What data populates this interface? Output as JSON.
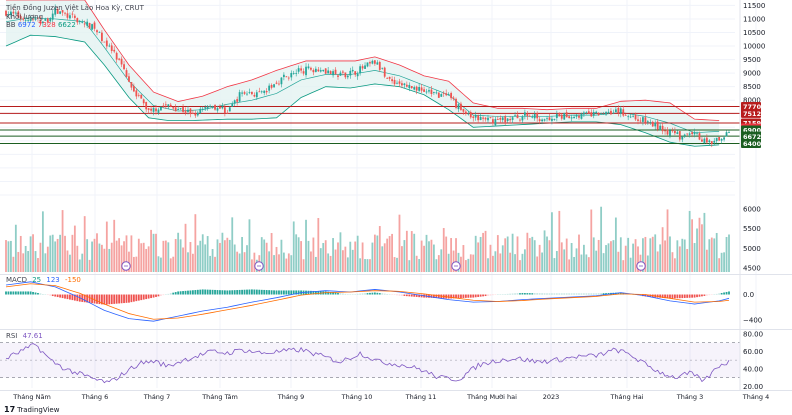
{
  "legend": {
    "title": "Tiền Đồng Juzen Việt Lào Hoa Kỳ, CRUT",
    "volume_label": "Khối lượng",
    "bb_prefix": "BB",
    "bb_values": [
      "6972",
      "7328",
      "6622"
    ],
    "bb_colors": [
      "#2962ff",
      "#f23645",
      "#089981"
    ]
  },
  "indicators": {
    "macd": {
      "label": "MACD",
      "values": [
        "25",
        "123",
        "-150"
      ],
      "colors": [
        "#089981",
        "#2962ff",
        "#ff6d00"
      ]
    },
    "rsi": {
      "label": "RSI",
      "value": "47.61",
      "color": "#7e57c2"
    }
  },
  "branding": {
    "icon": "tradingview-logo-icon",
    "text": "TradingView"
  },
  "colors": {
    "up": "#26a69a",
    "down": "#ef5350",
    "vol_up": "#8fcdc6",
    "vol_down": "#f5a3a1",
    "bb_mid": "#2962ff",
    "bb_upper": "#f23645",
    "bb_lower": "#089981",
    "bb_fill": "#e3f2f1",
    "hline_red": "#b71c1c",
    "hline_green": "#1b5e20"
  },
  "chart_data": {
    "type": "candlestick",
    "price_axis": {
      "ticks": [
        4500,
        5000,
        5500,
        6000,
        6500,
        7000,
        7500,
        8000,
        8500,
        9000,
        9500,
        10000,
        10500,
        11000,
        11500
      ],
      "range": [
        4500,
        11700
      ]
    },
    "volume_axis": {
      "ticks": [
        4500,
        5000,
        5500,
        6000
      ],
      "range": [
        4400,
        6100
      ]
    },
    "x_labels": [
      "Tháng Năm",
      "Tháng 6",
      "Tháng 7",
      "Tháng Tám",
      "Tháng 9",
      "Tháng 10",
      "Tháng 11",
      "Tháng Mười hai",
      "2023",
      "Tháng Hai",
      "Tháng 3",
      "Tháng 4"
    ],
    "horizontal_levels": [
      {
        "value": 7770,
        "label": "7770",
        "color": "#b71c1c"
      },
      {
        "value": 7512,
        "label": "7512",
        "color": "#b71c1c"
      },
      {
        "value": 7159,
        "label": "7159",
        "color": "#b71c1c"
      },
      {
        "value": 6972,
        "label": "6972",
        "color": "#f23645"
      },
      {
        "value": 6900,
        "label": "6900",
        "color": "#1b5e20"
      },
      {
        "value": 6672,
        "label": "6672",
        "color": "#1b5e20"
      },
      {
        "value": 6400,
        "label": "6400",
        "color": "#1b5e20"
      }
    ],
    "price_path": [
      [
        0,
        11250
      ],
      [
        8,
        11000
      ],
      [
        16,
        10900
      ],
      [
        20,
        11300
      ],
      [
        28,
        11000
      ],
      [
        36,
        10650
      ],
      [
        44,
        9700
      ],
      [
        52,
        8400
      ],
      [
        58,
        7600
      ],
      [
        64,
        7800
      ],
      [
        70,
        7700
      ],
      [
        76,
        7500
      ],
      [
        82,
        7850
      ],
      [
        90,
        7600
      ],
      [
        96,
        8300
      ],
      [
        104,
        8200
      ],
      [
        112,
        8800
      ],
      [
        120,
        9100
      ],
      [
        128,
        9200
      ],
      [
        134,
        8900
      ],
      [
        142,
        9050
      ],
      [
        150,
        9400
      ],
      [
        156,
        8750
      ],
      [
        164,
        8500
      ],
      [
        172,
        8300
      ],
      [
        180,
        8100
      ],
      [
        188,
        7400
      ],
      [
        196,
        7250
      ],
      [
        204,
        7300
      ],
      [
        212,
        7450
      ],
      [
        220,
        7300
      ],
      [
        226,
        7400
      ],
      [
        232,
        7450
      ],
      [
        240,
        7480
      ],
      [
        248,
        7650
      ],
      [
        256,
        7350
      ],
      [
        262,
        7150
      ],
      [
        270,
        6800
      ],
      [
        276,
        6600
      ],
      [
        280,
        6750
      ],
      [
        286,
        6400
      ],
      [
        290,
        6520
      ],
      [
        294,
        6850
      ]
    ],
    "bb_upper": [
      [
        0,
        11700
      ],
      [
        20,
        11700
      ],
      [
        32,
        11700
      ],
      [
        40,
        10600
      ],
      [
        50,
        9300
      ],
      [
        60,
        8300
      ],
      [
        70,
        7950
      ],
      [
        80,
        8150
      ],
      [
        90,
        8500
      ],
      [
        100,
        8750
      ],
      [
        110,
        9100
      ],
      [
        122,
        9450
      ],
      [
        132,
        9450
      ],
      [
        142,
        9450
      ],
      [
        150,
        9600
      ],
      [
        160,
        9300
      ],
      [
        170,
        8900
      ],
      [
        180,
        8700
      ],
      [
        190,
        7900
      ],
      [
        200,
        7700
      ],
      [
        210,
        7700
      ],
      [
        220,
        7650
      ],
      [
        230,
        7700
      ],
      [
        240,
        7700
      ],
      [
        250,
        7960
      ],
      [
        260,
        8000
      ],
      [
        270,
        7900
      ],
      [
        280,
        7300
      ],
      [
        290,
        7250
      ]
    ],
    "bb_lower": [
      [
        0,
        10000
      ],
      [
        10,
        10400
      ],
      [
        20,
        10350
      ],
      [
        32,
        10150
      ],
      [
        40,
        9300
      ],
      [
        50,
        8100
      ],
      [
        58,
        7350
      ],
      [
        66,
        7250
      ],
      [
        76,
        7250
      ],
      [
        90,
        7300
      ],
      [
        100,
        7300
      ],
      [
        110,
        7350
      ],
      [
        120,
        8100
      ],
      [
        130,
        8500
      ],
      [
        140,
        8450
      ],
      [
        150,
        8600
      ],
      [
        160,
        8500
      ],
      [
        170,
        8200
      ],
      [
        180,
        7650
      ],
      [
        190,
        7000
      ],
      [
        200,
        7050
      ],
      [
        210,
        7100
      ],
      [
        220,
        7150
      ],
      [
        230,
        7200
      ],
      [
        240,
        7200
      ],
      [
        250,
        7100
      ],
      [
        260,
        6800
      ],
      [
        270,
        6450
      ],
      [
        280,
        6300
      ],
      [
        290,
        6350
      ]
    ],
    "bb_mid": [
      [
        0,
        10900
      ],
      [
        10,
        11050
      ],
      [
        20,
        11000
      ],
      [
        32,
        10900
      ],
      [
        40,
        9950
      ],
      [
        50,
        8700
      ],
      [
        60,
        7800
      ],
      [
        70,
        7600
      ],
      [
        80,
        7650
      ],
      [
        90,
        7850
      ],
      [
        100,
        8000
      ],
      [
        110,
        8250
      ],
      [
        120,
        8750
      ],
      [
        130,
        8950
      ],
      [
        140,
        8950
      ],
      [
        150,
        9100
      ],
      [
        160,
        8900
      ],
      [
        170,
        8550
      ],
      [
        180,
        8200
      ],
      [
        190,
        7450
      ],
      [
        200,
        7400
      ],
      [
        210,
        7400
      ],
      [
        220,
        7400
      ],
      [
        230,
        7450
      ],
      [
        240,
        7450
      ],
      [
        250,
        7550
      ],
      [
        260,
        7400
      ],
      [
        270,
        7150
      ],
      [
        280,
        6800
      ],
      [
        290,
        6850
      ]
    ],
    "rsi_axis": {
      "ticks": [
        20,
        40,
        60,
        80
      ],
      "range": [
        18,
        80
      ],
      "band": [
        30,
        70
      ]
    },
    "rsi_path": [
      [
        0,
        52
      ],
      [
        6,
        60
      ],
      [
        12,
        68
      ],
      [
        18,
        50
      ],
      [
        24,
        40
      ],
      [
        30,
        34
      ],
      [
        36,
        28
      ],
      [
        42,
        24
      ],
      [
        48,
        35
      ],
      [
        54,
        46
      ],
      [
        60,
        49
      ],
      [
        66,
        43
      ],
      [
        72,
        50
      ],
      [
        78,
        55
      ],
      [
        84,
        60
      ],
      [
        90,
        58
      ],
      [
        96,
        62
      ],
      [
        104,
        58
      ],
      [
        112,
        60
      ],
      [
        120,
        62
      ],
      [
        128,
        55
      ],
      [
        136,
        48
      ],
      [
        144,
        58
      ],
      [
        152,
        48
      ],
      [
        160,
        45
      ],
      [
        168,
        40
      ],
      [
        176,
        30
      ],
      [
        184,
        28
      ],
      [
        192,
        44
      ],
      [
        200,
        50
      ],
      [
        208,
        52
      ],
      [
        216,
        48
      ],
      [
        224,
        50
      ],
      [
        232,
        54
      ],
      [
        240,
        55
      ],
      [
        248,
        62
      ],
      [
        254,
        56
      ],
      [
        260,
        45
      ],
      [
        266,
        36
      ],
      [
        272,
        30
      ],
      [
        278,
        35
      ],
      [
        284,
        26
      ],
      [
        290,
        44
      ],
      [
        294,
        48
      ]
    ],
    "macd_axis": {
      "ticks": [
        0,
        -400
      ],
      "labels": [
        "0.0",
        "−400"
      ],
      "range": [
        -480,
        260
      ]
    },
    "macd_line": [
      [
        0,
        150
      ],
      [
        10,
        200
      ],
      [
        20,
        120
      ],
      [
        30,
        -50
      ],
      [
        40,
        -250
      ],
      [
        50,
        -380
      ],
      [
        60,
        -420
      ],
      [
        70,
        -340
      ],
      [
        80,
        -260
      ],
      [
        90,
        -200
      ],
      [
        100,
        -120
      ],
      [
        110,
        -50
      ],
      [
        120,
        30
      ],
      [
        130,
        60
      ],
      [
        140,
        40
      ],
      [
        150,
        80
      ],
      [
        160,
        40
      ],
      [
        170,
        -20
      ],
      [
        180,
        -80
      ],
      [
        190,
        -120
      ],
      [
        200,
        -110
      ],
      [
        210,
        -80
      ],
      [
        220,
        -60
      ],
      [
        230,
        -40
      ],
      [
        240,
        -20
      ],
      [
        250,
        30
      ],
      [
        260,
        -20
      ],
      [
        270,
        -100
      ],
      [
        280,
        -150
      ],
      [
        290,
        -100
      ],
      [
        294,
        -60
      ]
    ],
    "macd_signal": [
      [
        0,
        120
      ],
      [
        10,
        170
      ],
      [
        20,
        140
      ],
      [
        30,
        20
      ],
      [
        40,
        -150
      ],
      [
        50,
        -300
      ],
      [
        60,
        -390
      ],
      [
        70,
        -370
      ],
      [
        80,
        -310
      ],
      [
        90,
        -240
      ],
      [
        100,
        -170
      ],
      [
        110,
        -90
      ],
      [
        120,
        -10
      ],
      [
        130,
        30
      ],
      [
        140,
        40
      ],
      [
        150,
        60
      ],
      [
        160,
        50
      ],
      [
        170,
        10
      ],
      [
        180,
        -40
      ],
      [
        190,
        -90
      ],
      [
        200,
        -110
      ],
      [
        210,
        -95
      ],
      [
        220,
        -70
      ],
      [
        230,
        -50
      ],
      [
        240,
        -30
      ],
      [
        250,
        10
      ],
      [
        260,
        0
      ],
      [
        270,
        -60
      ],
      [
        280,
        -120
      ],
      [
        290,
        -110
      ],
      [
        294,
        -90
      ]
    ],
    "event_markers": [
      126,
      259,
      456,
      641
    ]
  }
}
